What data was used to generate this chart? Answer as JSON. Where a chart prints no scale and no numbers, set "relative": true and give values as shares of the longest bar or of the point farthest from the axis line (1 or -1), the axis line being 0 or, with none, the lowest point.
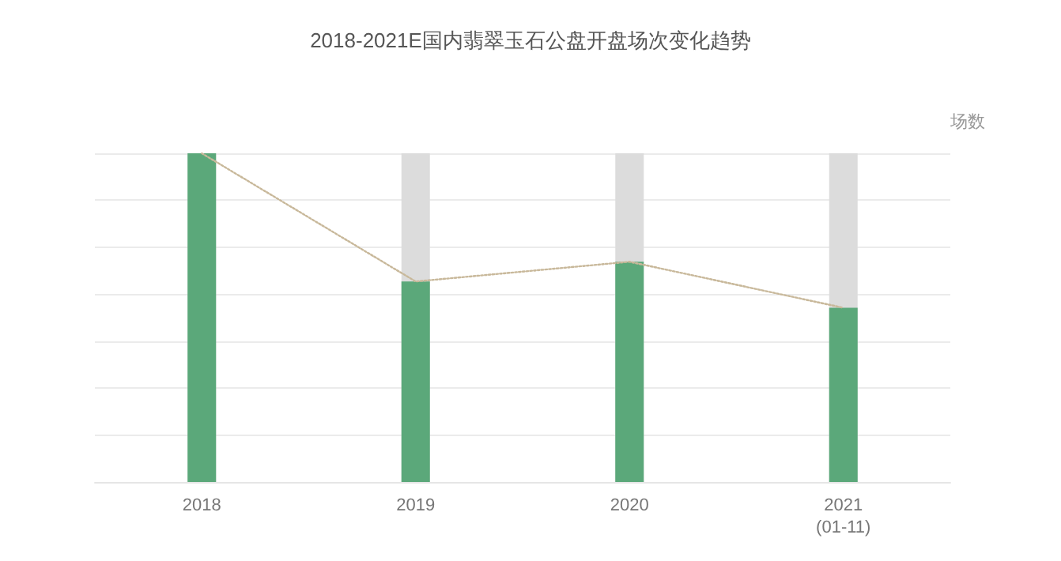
{
  "chart_data": {
    "type": "bar",
    "title": "2018-2021E国内翡翠玉石公盘开盘场次变化趋势",
    "ylabel": "场数",
    "categories": [
      "2018",
      "2019",
      "2020",
      "2021\n(01-11)"
    ],
    "relative": true,
    "grid": "y",
    "series": [
      {
        "color": "#5ba87a",
        "values": [
          1,
          0.61,
          0.67,
          0.53
        ]
      },
      {
        "type": "line",
        "color": "#c8b89a",
        "values": [
          1,
          0.61,
          0.67,
          0.53
        ],
        "line_style": "dotted",
        "marker": "none"
      }
    ]
  }
}
